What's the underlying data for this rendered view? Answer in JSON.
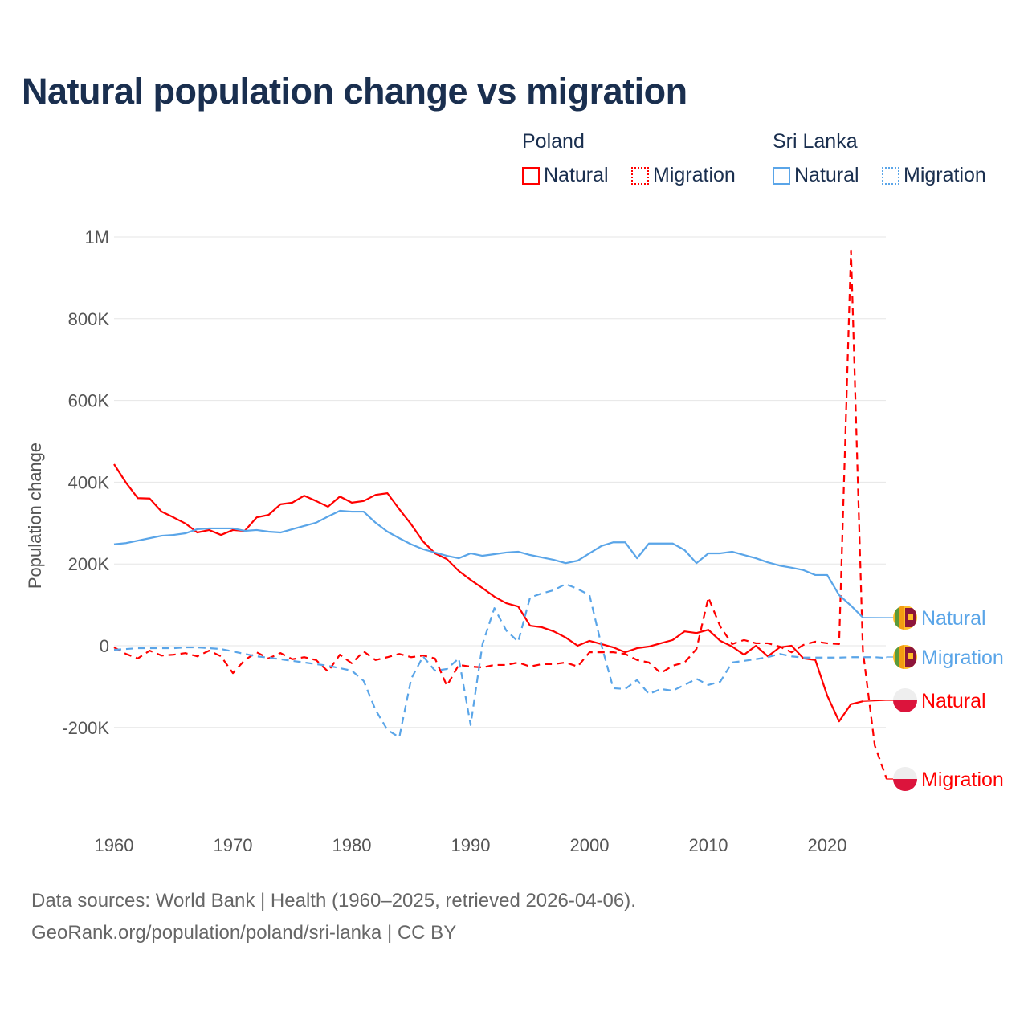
{
  "title": "Natural population change vs migration",
  "legend": {
    "groups": [
      {
        "name": "Poland",
        "items": [
          {
            "label": "Natural",
            "style": "solid"
          },
          {
            "label": "Migration",
            "style": "dotted"
          }
        ],
        "color": "#ff0000"
      },
      {
        "name": "Sri Lanka",
        "items": [
          {
            "label": "Natural",
            "style": "solid"
          },
          {
            "label": "Migration",
            "style": "dotted"
          }
        ],
        "color": "#5aa5e8"
      }
    ]
  },
  "footer": {
    "line1": "Data sources: World Bank | Health (1960–2025, retrieved 2026-04-06).",
    "line2": "GeoRank.org/population/poland/sri-lanka | CC BY"
  },
  "chart_data": {
    "type": "line",
    "title": "Natural population change vs migration",
    "ylabel": "Population change",
    "xlabel": "",
    "xlim": [
      1960,
      2025
    ],
    "ylim": [
      -400000,
      1000000
    ],
    "grid": true,
    "x_ticks": [
      {
        "v": 1960,
        "label": "1960"
      },
      {
        "v": 1970,
        "label": "1970"
      },
      {
        "v": 1980,
        "label": "1980"
      },
      {
        "v": 1990,
        "label": "1990"
      },
      {
        "v": 2000,
        "label": "2000"
      },
      {
        "v": 2010,
        "label": "2010"
      },
      {
        "v": 2020,
        "label": "2020"
      }
    ],
    "y_ticks": [
      {
        "v": 1000000,
        "label": "1M"
      },
      {
        "v": 800000,
        "label": "800K"
      },
      {
        "v": 600000,
        "label": "600K"
      },
      {
        "v": 400000,
        "label": "400K"
      },
      {
        "v": 200000,
        "label": "200K"
      },
      {
        "v": 0,
        "label": "0"
      },
      {
        "v": -200000,
        "label": "-200K"
      }
    ],
    "series": [
      {
        "name": "Poland Natural",
        "label": "Natural",
        "country": "Poland",
        "color": "#ff0000",
        "dash": false,
        "start": 1960,
        "values": [
          444,
          399,
          361,
          360,
          328,
          314,
          299,
          277,
          283,
          271,
          283,
          281,
          314,
          320,
          346,
          350,
          367,
          354,
          340,
          365,
          350,
          354,
          369,
          373,
          334,
          297,
          255,
          226,
          212,
          183,
          161,
          141,
          120,
          104,
          96,
          49,
          45,
          35,
          20,
          0,
          12,
          4,
          -4,
          -16,
          -6,
          -2,
          6,
          14,
          35,
          31,
          39,
          12,
          -2,
          -22,
          0,
          -26,
          -4,
          0,
          -31,
          -35,
          -122,
          -185,
          -143,
          -136
        ]
      },
      {
        "name": "Poland Migration",
        "label": "Migration",
        "country": "Poland",
        "color": "#ff0000",
        "dash": true,
        "start": 1960,
        "values": [
          -4,
          -20,
          -31,
          -12,
          -24,
          -22,
          -18,
          -26,
          -12,
          -26,
          -67,
          -35,
          -16,
          -31,
          -18,
          -33,
          -28,
          -35,
          -63,
          -22,
          -43,
          -14,
          -35,
          -28,
          -20,
          -28,
          -24,
          -31,
          -98,
          -47,
          -51,
          -53,
          -47,
          -47,
          -41,
          -51,
          -45,
          -45,
          -41,
          -51,
          -16,
          -16,
          -16,
          -20,
          -35,
          -41,
          -67,
          -49,
          -41,
          -8,
          118,
          47,
          4,
          14,
          6,
          6,
          -2,
          -16,
          2,
          10,
          6,
          4,
          967,
          -12,
          -244,
          -326
        ]
      },
      {
        "name": "Sri Lanka Natural",
        "label": "Natural",
        "country": "Sri Lanka",
        "color": "#5aa5e8",
        "dash": false,
        "start": 1960,
        "values": [
          248,
          251,
          257,
          263,
          269,
          271,
          275,
          285,
          287,
          287,
          287,
          281,
          283,
          279,
          277,
          285,
          293,
          301,
          316,
          330,
          328,
          328,
          301,
          279,
          263,
          248,
          236,
          228,
          220,
          214,
          226,
          220,
          224,
          228,
          230,
          222,
          216,
          210,
          202,
          208,
          226,
          244,
          253,
          253,
          214,
          250,
          250,
          250,
          234,
          202,
          226,
          226,
          230,
          222,
          214,
          204,
          196,
          191,
          185,
          173,
          173,
          124,
          98,
          69
        ]
      },
      {
        "name": "Sri Lanka Migration",
        "label": "Migration",
        "country": "Sri Lanka",
        "color": "#5aa5e8",
        "dash": true,
        "start": 1960,
        "values": [
          -10,
          -8,
          -6,
          -6,
          -6,
          -6,
          -4,
          -4,
          -6,
          -8,
          -14,
          -20,
          -26,
          -29,
          -33,
          -37,
          -41,
          -45,
          -49,
          -55,
          -61,
          -86,
          -157,
          -206,
          -224,
          -81,
          -26,
          -61,
          -57,
          -31,
          -194,
          4,
          92,
          37,
          10,
          118,
          128,
          136,
          151,
          139,
          124,
          2,
          -104,
          -106,
          -84,
          -118,
          -106,
          -110,
          -96,
          -81,
          -96,
          -88,
          -41,
          -37,
          -33,
          -28,
          -20,
          -26,
          -29,
          -29,
          -29,
          -29,
          -28,
          -28,
          -28,
          -30
        ]
      }
    ],
    "value_unit": "thousands"
  }
}
